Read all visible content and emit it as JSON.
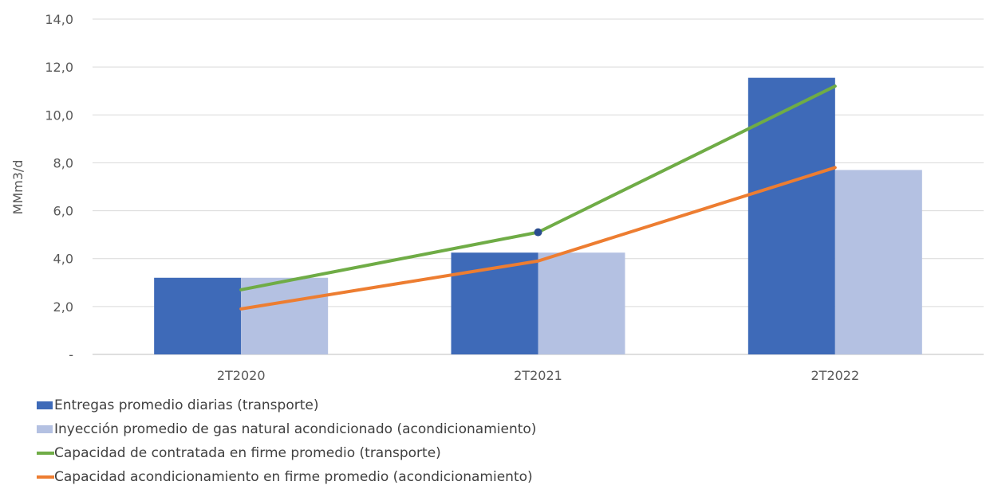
{
  "chart_data": {
    "type": "bar",
    "categories": [
      "2T2020",
      "2T2021",
      "2T2022"
    ],
    "ylabel": "MMm3/d",
    "ylim": [
      0,
      14
    ],
    "yticks": [
      {
        "value": 0,
        "label": "-"
      },
      {
        "value": 2,
        "label": "2,0"
      },
      {
        "value": 4,
        "label": "4,0"
      },
      {
        "value": 6,
        "label": "6,0"
      },
      {
        "value": 8,
        "label": "8,0"
      },
      {
        "value": 10,
        "label": "10,0"
      },
      {
        "value": 12,
        "label": "12,0"
      },
      {
        "value": 14,
        "label": "14,0"
      }
    ],
    "grid": true,
    "legend_position": "bottom-left",
    "series": [
      {
        "name": "Entregas promedio diarias (transporte)",
        "kind": "bar",
        "color": "#3e6ab8",
        "values": [
          3.2,
          4.25,
          11.55
        ]
      },
      {
        "name": "Inyección promedio de gas natural acondicionado (acondicionamiento)",
        "kind": "bar",
        "color": "#b4c1e2",
        "values": [
          3.2,
          4.25,
          7.7
        ]
      },
      {
        "name": "Capacidad de contratada en firme promedio (transporte)",
        "kind": "line",
        "color": "#6fac46",
        "values": [
          2.7,
          5.1,
          11.2
        ]
      },
      {
        "name": "Capacidad acondicionamiento en firme promedio (acondicionamiento)",
        "kind": "line",
        "color": "#ed7d31",
        "values": [
          1.9,
          3.9,
          7.8
        ]
      }
    ],
    "annotations": [
      {
        "type": "marker",
        "series": "Capacidad de contratada en firme promedio (transporte)",
        "category": "2T2021",
        "color": "#2a4d8f"
      }
    ]
  }
}
